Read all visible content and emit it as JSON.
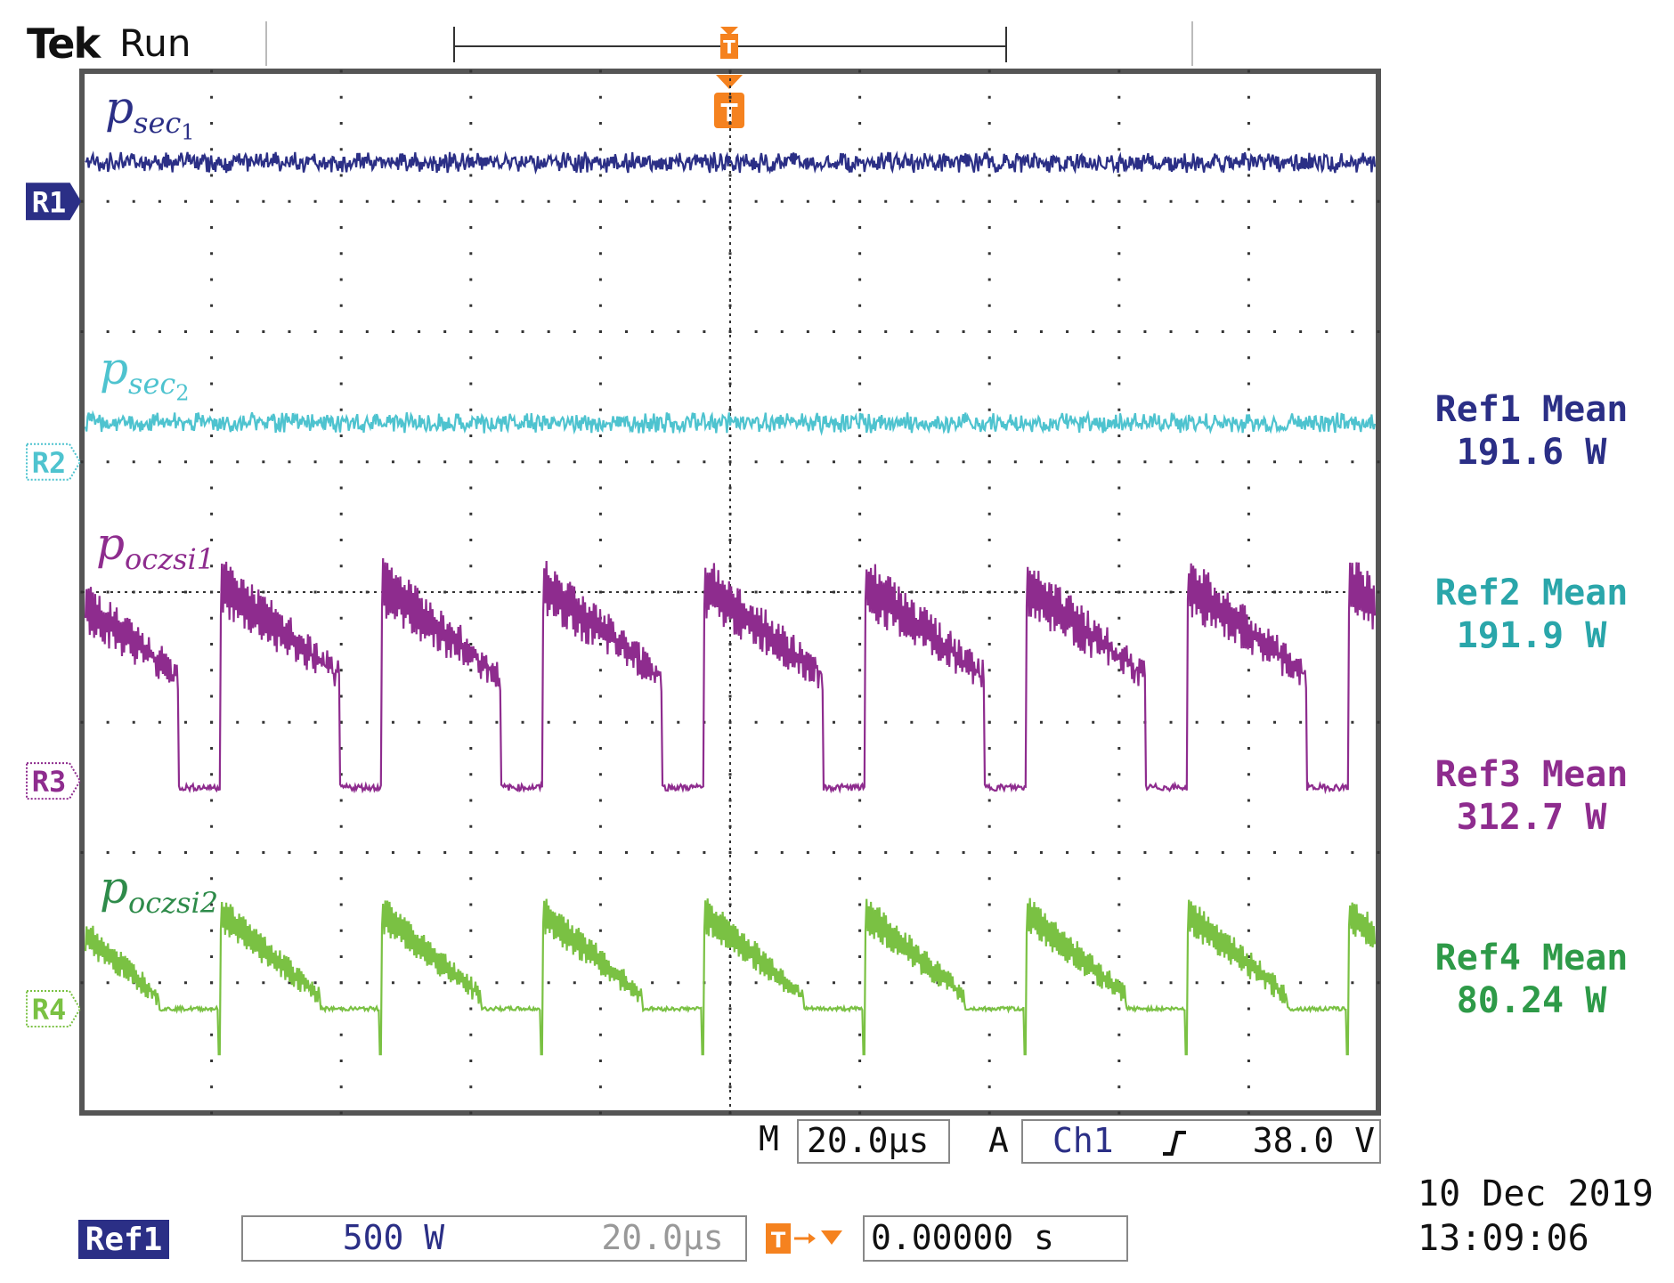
{
  "header": {
    "brand": "Tek",
    "run_state": "Run"
  },
  "trigger": {
    "marker": "T",
    "source_marker": "T"
  },
  "traces": [
    {
      "ref": "R1",
      "label_base": "p",
      "label_sub": "sec",
      "label_subsub": "1",
      "color": "#2b2f86"
    },
    {
      "ref": "R2",
      "label_base": "p",
      "label_sub": "sec",
      "label_subsub": "2",
      "color": "#4ec3cf"
    },
    {
      "ref": "R3",
      "label_base": "p",
      "label_sub": "oczsi1",
      "label_subsub": "",
      "color": "#8e2c8e"
    },
    {
      "ref": "R4",
      "label_base": "p",
      "label_sub": "oczsi2",
      "label_subsub": "",
      "color": "#7ac143"
    }
  ],
  "label_colors": {
    "R4_text": "#2e8b4a"
  },
  "measurements": [
    {
      "title": "Ref1 Mean",
      "value": "191.6 W",
      "color": "#2b2f86"
    },
    {
      "title": "Ref2 Mean",
      "value": "191.9 W",
      "color": "#2aa6aa"
    },
    {
      "title": "Ref3 Mean",
      "value": "312.7 W",
      "color": "#8e2c8e"
    },
    {
      "title": "Ref4 Mean",
      "value": "80.24 W",
      "color": "#2e9a48"
    }
  ],
  "timebase": {
    "m_label": "M",
    "m_value": "20.0µs",
    "a_label": "A",
    "source": "Ch1",
    "slope_icon": "rising-edge-icon",
    "level": "38.0 V"
  },
  "bottom": {
    "ref_badge": "Ref1",
    "scale": "500 W",
    "time_div": "20.0µs",
    "trigger_position": "0.00000 s"
  },
  "datetime": {
    "date": "10 Dec  2019",
    "time": "13:09:06"
  },
  "chart_data": {
    "type": "line",
    "title": "Tek Run",
    "x_unit": "s",
    "x_per_div": "20.0µs",
    "x_range_divisions": [
      0,
      10
    ],
    "y_range_divisions": [
      0,
      8
    ],
    "grid": true,
    "series": [
      {
        "name": "p_sec1 (Ref1)",
        "kind": "noisy-flat",
        "level_div": 7.3,
        "ripple_div": 0.08,
        "mean": "191.6 W"
      },
      {
        "name": "p_sec2 (Ref2)",
        "kind": "noisy-flat",
        "level_div": 5.3,
        "ripple_div": 0.08,
        "mean": "191.9 W"
      },
      {
        "name": "p_oczsi1 (Ref3)",
        "kind": "pulsed",
        "period_us": 25,
        "duty": 0.74,
        "baseline_div": 2.5,
        "peak_div": 4.0,
        "mean": "312.7 W"
      },
      {
        "name": "p_oczsi2 (Ref4)",
        "kind": "sawtooth",
        "period_us": 25,
        "baseline_div": 0.8,
        "peak_div": 1.5,
        "mean": "80.24 W"
      }
    ]
  }
}
